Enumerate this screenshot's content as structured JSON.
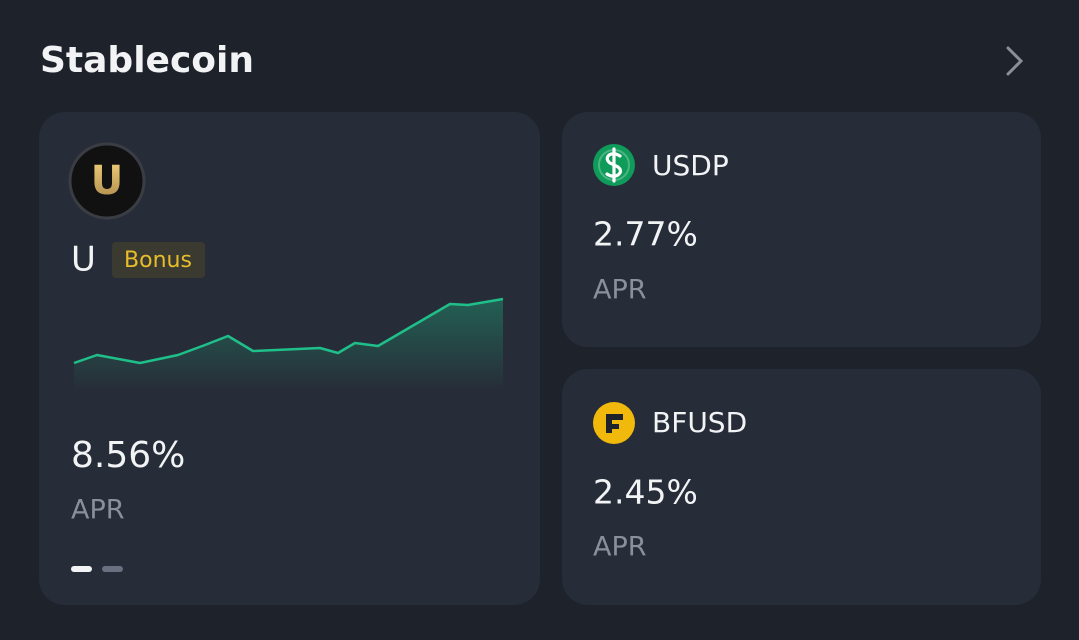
{
  "header": {
    "title": "Stablecoin"
  },
  "featured": {
    "icon_letter": "U",
    "name": "U",
    "badge": "Bonus",
    "sparkline": {
      "x": [
        0,
        23,
        66,
        104,
        131,
        154,
        179,
        246,
        264,
        281,
        304,
        376,
        394,
        429
      ],
      "values": [
        27,
        35,
        27,
        35,
        45,
        54,
        39,
        42,
        37,
        47,
        44,
        86,
        85,
        91
      ]
    },
    "apr": "8.56%",
    "apr_label": "APR"
  },
  "cards": [
    {
      "name": "USDP",
      "apr": "2.77%",
      "apr_label": "APR"
    },
    {
      "name": "BFUSD",
      "apr": "2.45%",
      "apr_label": "APR"
    }
  ]
}
